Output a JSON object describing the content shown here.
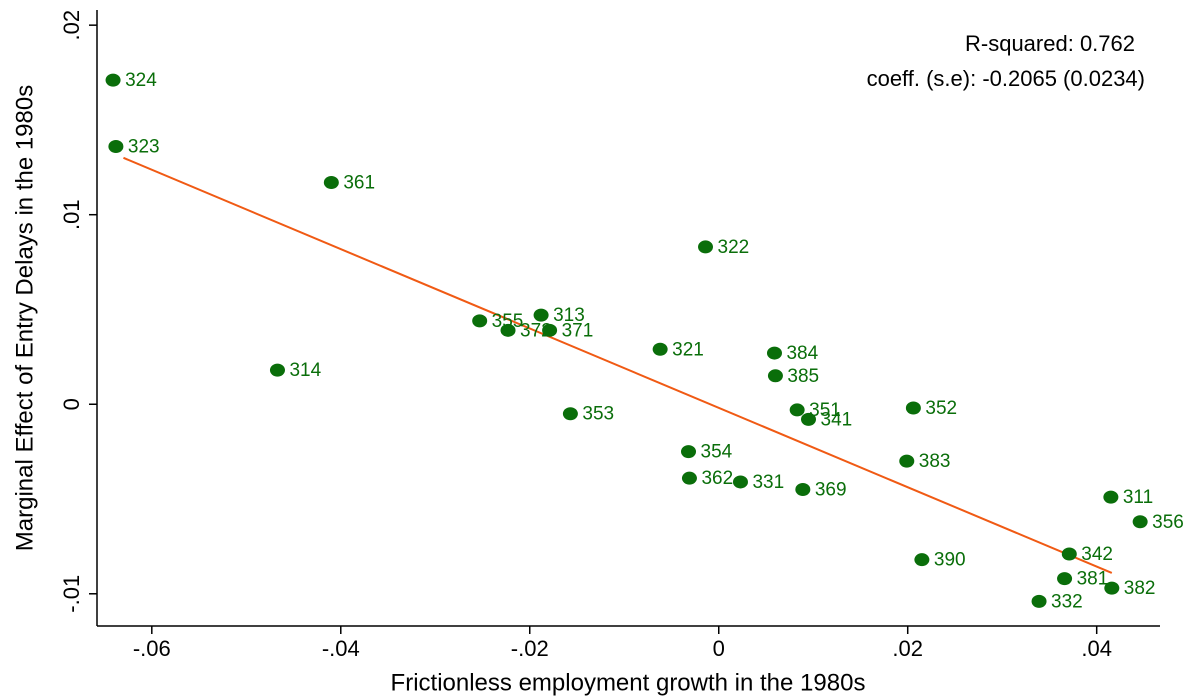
{
  "chart_data": {
    "type": "scatter",
    "x_label": "Frictionless employment growth in the 1980s",
    "y_label": "Marginal Effect of Entry Delays in the 1980s",
    "annotations": [
      "R-squared: 0.762",
      "coeff. (s.e): -0.2065 (0.0234)"
    ],
    "labels": [
      "324",
      "323",
      "361",
      "322",
      "355",
      "313",
      "372",
      "371",
      "321",
      "314",
      "384",
      "385",
      "353",
      "351",
      "341",
      "352",
      "354",
      "362",
      "331",
      "369",
      "383",
      "311",
      "356",
      "390",
      "342",
      "381",
      "382",
      "332"
    ],
    "x": [
      -0.0641,
      -0.0638,
      -0.041,
      -0.0014,
      -0.0253,
      -0.0188,
      -0.0223,
      -0.0179,
      -0.0062,
      -0.0467,
      0.0059,
      0.006,
      -0.0157,
      0.0083,
      0.0095,
      0.0206,
      -0.0032,
      -0.0031,
      0.0023,
      0.0089,
      0.0199,
      0.0415,
      0.0446,
      0.0215,
      0.0371,
      0.0366,
      0.0416,
      0.0339
    ],
    "values": [
      0.0171,
      0.0136,
      0.0117,
      0.0083,
      0.0044,
      0.0047,
      0.0039,
      0.0039,
      0.0029,
      0.0018,
      0.0027,
      0.0015,
      -0.0005,
      -0.0003,
      -0.0008,
      -0.0002,
      -0.0025,
      -0.0039,
      -0.0041,
      -0.0045,
      -0.003,
      -0.0049,
      -0.0062,
      -0.0082,
      -0.0079,
      -0.0092,
      -0.0097,
      -0.0104
    ],
    "color": "#0a6e0a",
    "fit_line": {
      "x": [
        -0.063,
        0.0416
      ],
      "values": [
        0.013,
        -0.0089
      ],
      "color": "#f05a14"
    },
    "xlim": [
      -0.0658,
      0.0467
    ],
    "ylim": [
      -0.0117,
      0.0208
    ],
    "xticks": [
      {
        "value": -0.06,
        "label": "-.06"
      },
      {
        "value": -0.04,
        "label": "-.04"
      },
      {
        "value": -0.02,
        "label": "-.02"
      },
      0,
      {
        "value": 0.02,
        "label": ".02"
      },
      {
        "value": 0.04,
        "label": ".04"
      }
    ],
    "yticks": [
      {
        "value": -0.01,
        "label": "-.01"
      },
      0,
      {
        "value": 0.01,
        "label": ".01"
      },
      {
        "value": 0.02,
        "label": ".02"
      }
    ],
    "grid": false
  }
}
